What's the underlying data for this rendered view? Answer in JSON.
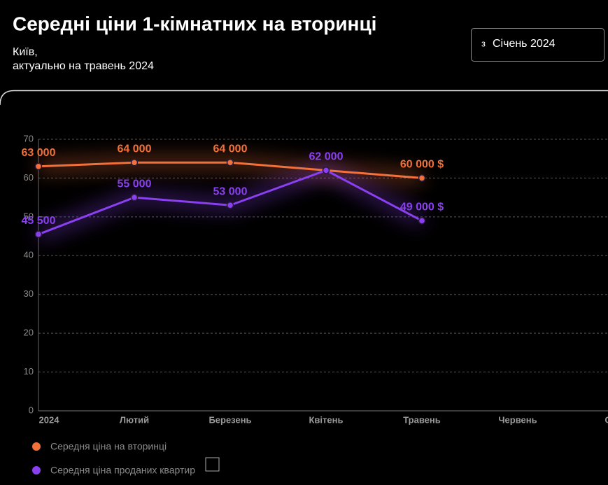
{
  "header": {
    "title": "Середні ціни 1-кімнатних на вторинці",
    "subtitle_lines": [
      "Київ,",
      "актуально на травень 2024"
    ],
    "filter": {
      "prefix": "з",
      "value": "Січень 2024"
    }
  },
  "chart_data": {
    "type": "line",
    "categories": [
      "2024",
      "Лютий",
      "Березень",
      "Квітень",
      "Травень",
      "Червень",
      "Сьо"
    ],
    "series": [
      {
        "name": "Середня ціна на вторинці",
        "color": "#f2703a",
        "values": [
          63,
          64,
          64,
          62,
          60,
          null,
          null
        ],
        "value_labels": [
          "63 000",
          "64 000",
          "64 000",
          null,
          "60 000 $",
          null,
          null
        ]
      },
      {
        "name": "Середня ціна проданих квартир",
        "color": "#8a3ff0",
        "values": [
          45.5,
          55,
          53,
          62,
          49,
          null,
          null
        ],
        "value_labels": [
          "45 500",
          "55 000",
          "53 000",
          "62 000",
          "49 000 $",
          null,
          null
        ]
      }
    ],
    "ylim": [
      0,
      70
    ],
    "yticks": [
      0,
      10,
      20,
      30,
      40,
      50,
      60,
      70
    ],
    "grid": true
  }
}
